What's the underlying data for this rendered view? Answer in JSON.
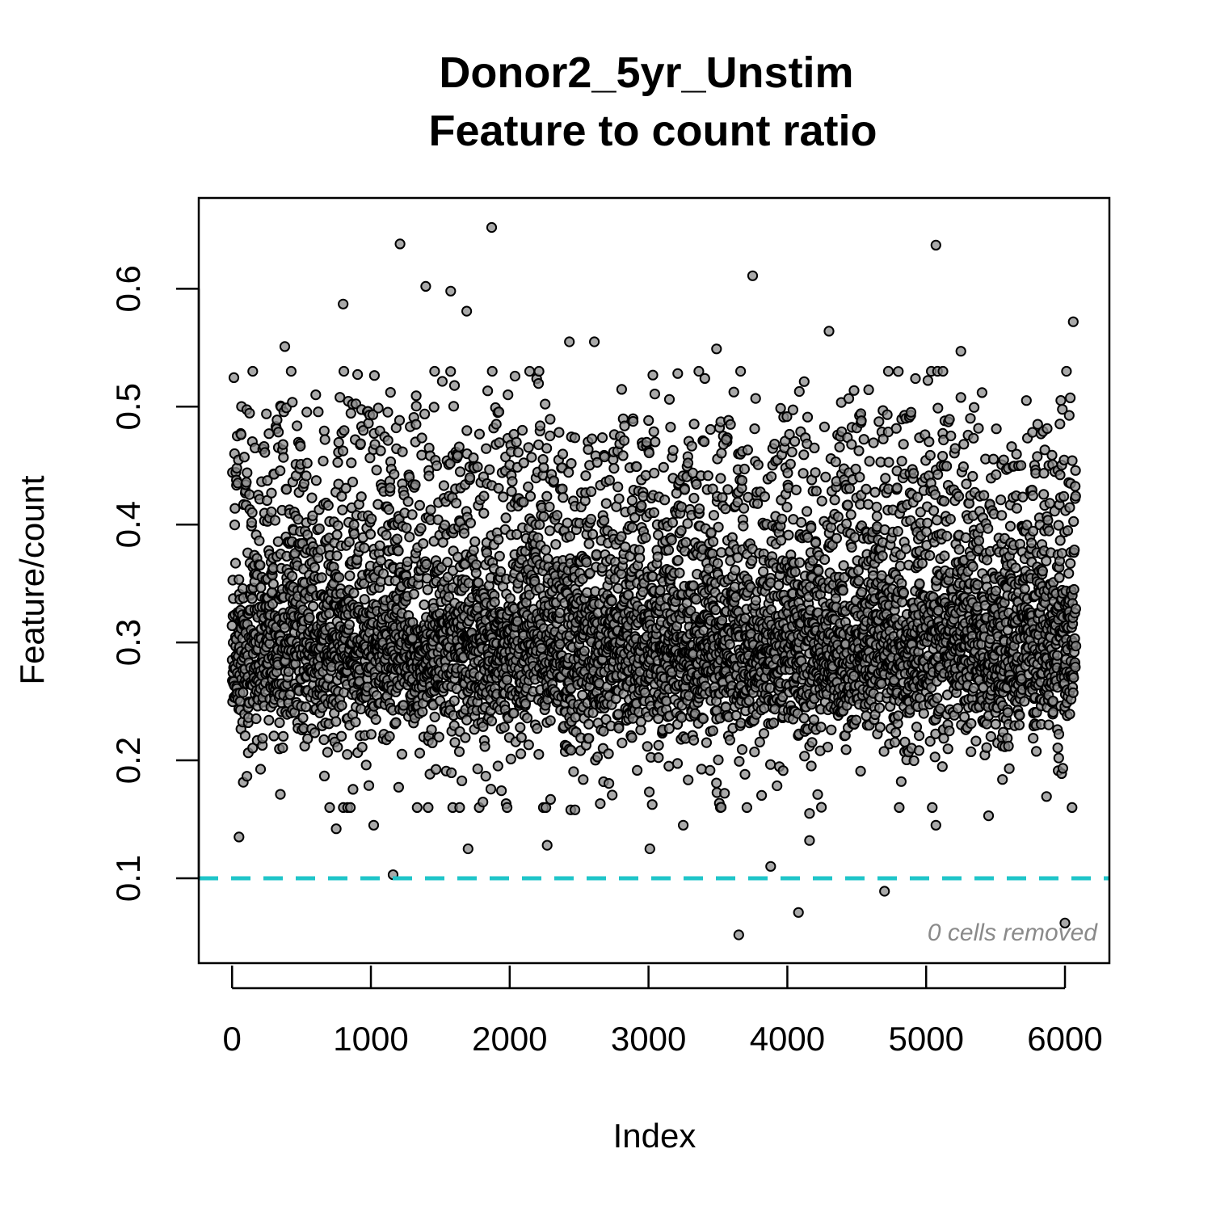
{
  "chart_data": {
    "type": "scatter",
    "title": "Donor2_5yr_Unstim",
    "subtitle": "Feature to count ratio",
    "xlabel": "Index",
    "ylabel": "Feature/count",
    "xlim": [
      -240,
      6320
    ],
    "ylim": [
      0.028,
      0.677
    ],
    "xticks": [
      0,
      1000,
      2000,
      3000,
      4000,
      5000,
      6000
    ],
    "xtick_labels": [
      "0",
      "1000",
      "2000",
      "3000",
      "4000",
      "5000",
      "6000"
    ],
    "yticks": [
      0.1,
      0.2,
      0.3,
      0.4,
      0.5,
      0.6
    ],
    "ytick_labels": [
      "0.1",
      "0.2",
      "0.3",
      "0.4",
      "0.5",
      "0.6"
    ],
    "grid": false,
    "legend": "none",
    "n_points": 6079,
    "point_fill": "#8c8c8c",
    "point_stroke": "#000000",
    "threshold": {
      "value": 0.1,
      "color": "#1fc5c9",
      "style": "dashed"
    },
    "annotation": {
      "text": "0 cells removed",
      "color": "#8a8a8a"
    },
    "notable_points": [
      {
        "x": 1870,
        "y": 0.652
      },
      {
        "x": 1210,
        "y": 0.638
      },
      {
        "x": 5070,
        "y": 0.637
      },
      {
        "x": 3750,
        "y": 0.611
      },
      {
        "x": 1395,
        "y": 0.602
      },
      {
        "x": 1575,
        "y": 0.598
      },
      {
        "x": 800,
        "y": 0.587
      },
      {
        "x": 1690,
        "y": 0.581
      },
      {
        "x": 6060,
        "y": 0.572
      },
      {
        "x": 4300,
        "y": 0.564
      },
      {
        "x": 2610,
        "y": 0.555
      },
      {
        "x": 2430,
        "y": 0.555
      },
      {
        "x": 380,
        "y": 0.551
      },
      {
        "x": 3490,
        "y": 0.549
      },
      {
        "x": 5250,
        "y": 0.547
      },
      {
        "x": 1160,
        "y": 0.103
      },
      {
        "x": 3880,
        "y": 0.11
      },
      {
        "x": 4700,
        "y": 0.089
      },
      {
        "x": 4080,
        "y": 0.071
      },
      {
        "x": 6000,
        "y": 0.062
      },
      {
        "x": 3650,
        "y": 0.052
      },
      {
        "x": 50,
        "y": 0.135
      },
      {
        "x": 1700,
        "y": 0.125
      },
      {
        "x": 2270,
        "y": 0.128
      },
      {
        "x": 3010,
        "y": 0.125
      },
      {
        "x": 4160,
        "y": 0.132
      },
      {
        "x": 5450,
        "y": 0.153
      },
      {
        "x": 2440,
        "y": 0.158
      },
      {
        "x": 2470,
        "y": 0.158
      },
      {
        "x": 750,
        "y": 0.142
      },
      {
        "x": 1020,
        "y": 0.145
      },
      {
        "x": 5070,
        "y": 0.145
      },
      {
        "x": 3250,
        "y": 0.145
      },
      {
        "x": 4160,
        "y": 0.155
      },
      {
        "x": 3540,
        "y": 0.468
      },
      {
        "x": 3560,
        "y": 0.472
      }
    ]
  }
}
